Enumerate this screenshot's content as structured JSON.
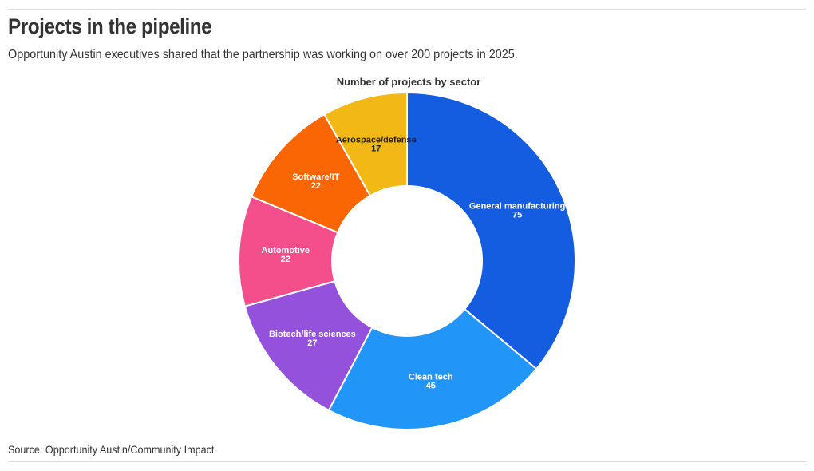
{
  "header": {
    "title": "Projects in the pipeline",
    "subtitle": "Opportunity Austin executives shared that the partnership was working on over 200 projects in 2025."
  },
  "footer": {
    "source": "Source: Opportunity Austin/Community Impact"
  },
  "chart_data": {
    "type": "pie",
    "variant": "donut",
    "title": "Number of projects by sector",
    "start": "12 o'clock",
    "direction": "clockwise",
    "slices": [
      {
        "label": "General manufacturing",
        "value": 75,
        "color": "#155de0",
        "text_color": "#ffffff"
      },
      {
        "label": "Clean tech",
        "value": 45,
        "color": "#2196f8",
        "text_color": "#ffffff"
      },
      {
        "label": "Biotech/life sciences",
        "value": 27,
        "color": "#9452dc",
        "text_color": "#ffffff"
      },
      {
        "label": "Automotive",
        "value": 22,
        "color": "#f54f8b",
        "text_color": "#ffffff"
      },
      {
        "label": "Software/IT",
        "value": 22,
        "color": "#fb6604",
        "text_color": "#ffffff"
      },
      {
        "label": "Aerospace/defense",
        "value": 17,
        "color": "#f2b916",
        "text_color": "#222222"
      }
    ]
  }
}
